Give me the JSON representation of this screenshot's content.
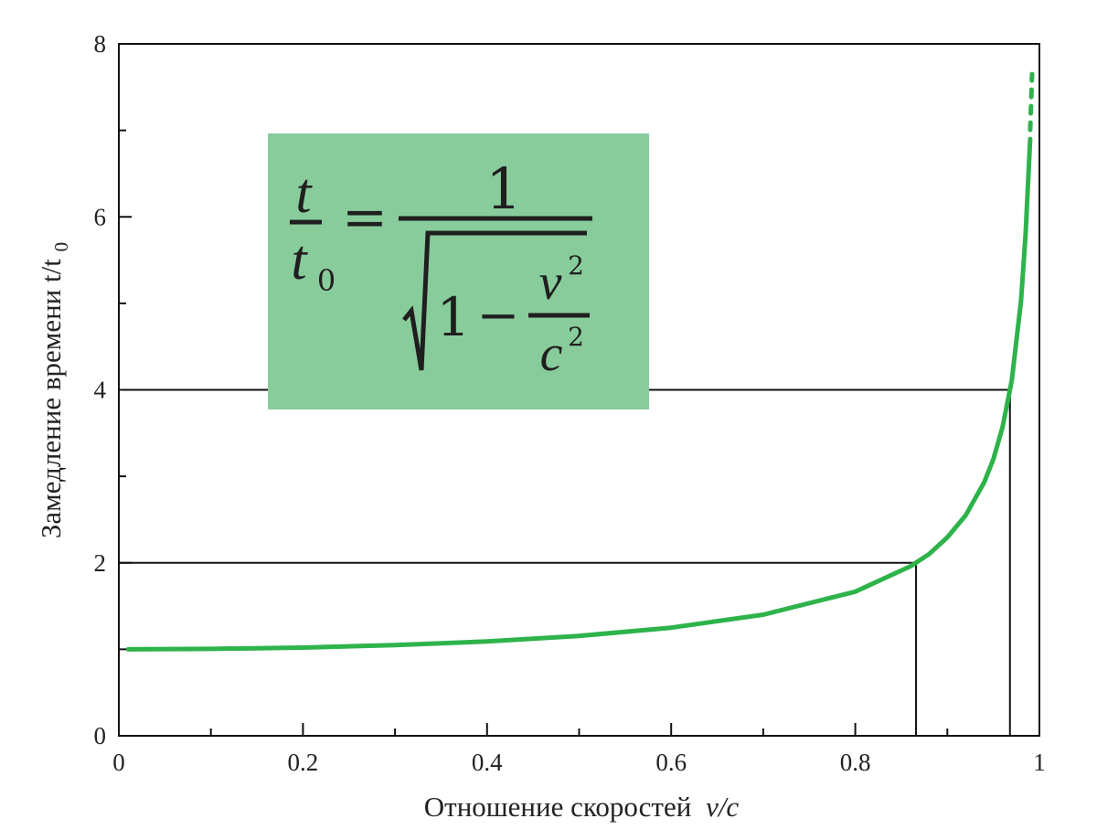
{
  "chart_data": {
    "type": "line",
    "title": "",
    "xlabel": "Отношение скоростей",
    "xlabel_italic": "v/c",
    "ylabel": "Замедление времени t/t",
    "ylabel_sub": "0",
    "xlim": [
      0,
      1
    ],
    "ylim": [
      0,
      8
    ],
    "x_ticks": [
      0,
      0.2,
      0.4,
      0.6,
      0.8,
      1
    ],
    "x_tick_labels": [
      "0",
      "0.2",
      "0.4",
      "0.6",
      "0.8",
      "1"
    ],
    "x_minor_ticks": [
      0.1,
      0.3,
      0.5,
      0.7,
      0.9
    ],
    "y_ticks": [
      0,
      2,
      4,
      6,
      8
    ],
    "y_tick_labels": [
      "0",
      "2",
      "4",
      "6",
      "8"
    ],
    "y_minor_ticks": [
      1,
      3,
      5,
      7
    ],
    "grid": false,
    "series": [
      {
        "color": "#2db34a",
        "x": [
          0.01,
          0.1,
          0.2,
          0.3,
          0.4,
          0.5,
          0.6,
          0.7,
          0.8,
          0.86,
          0.88,
          0.9,
          0.92,
          0.94,
          0.95,
          0.96,
          0.97,
          0.98,
          0.985,
          0.99
        ],
        "y": [
          1.0,
          1.005,
          1.02,
          1.048,
          1.091,
          1.155,
          1.25,
          1.4,
          1.667,
          1.96,
          2.1,
          2.294,
          2.55,
          2.93,
          3.2,
          3.57,
          4.11,
          5.03,
          5.8,
          6.9
        ],
        "dashed_extension": {
          "x": [
            0.99,
            0.992
          ],
          "y": [
            6.9,
            7.65
          ]
        }
      }
    ],
    "reference_lines": [
      {
        "y": 2,
        "x": 0.866
      },
      {
        "y": 4,
        "x": 0.968
      }
    ],
    "formula_box": {
      "color": "#89cc9c",
      "lhs_num": "t",
      "lhs_den": "t",
      "lhs_den_sub": "0",
      "equals": "=",
      "rhs_num": "1",
      "rad_one": "1",
      "rad_minus": "−",
      "rad_num": "v",
      "rad_num_sup": "2",
      "rad_den": "c",
      "rad_den_sup": "2"
    }
  }
}
